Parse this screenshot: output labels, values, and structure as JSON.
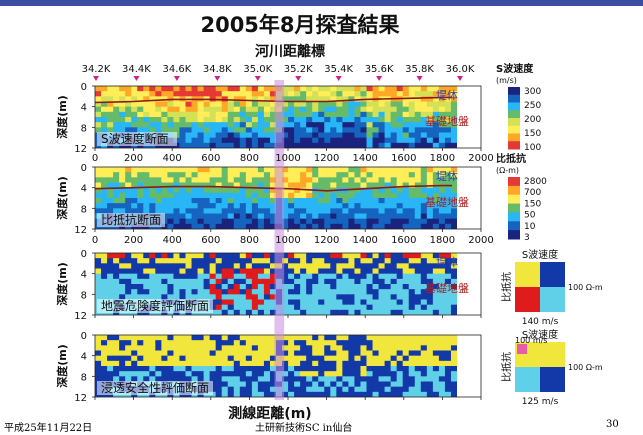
{
  "slide": {
    "title": "2005年8月探査結果",
    "top_axis_label": "河川距離標",
    "bottom_axis_label": "測線距離(m)",
    "footer_left": "平成25年11月22日",
    "footer_center": "土研新技術SC in仙台",
    "page_number": "30"
  },
  "chart_data": {
    "type": "heatmap",
    "title": "2005年8月探査結果",
    "top_axis": {
      "label": "河川距離標",
      "ticks": [
        "34.2K",
        "34.4K",
        "34.6K",
        "34.8K",
        "35.0K",
        "35.2K",
        "35.4K",
        "35.6K",
        "35.8K",
        "36.0K"
      ]
    },
    "x_axis": {
      "label": "測線距離(m)",
      "ticks": [
        "0",
        "200",
        "400",
        "600",
        "800",
        "1000",
        "1200",
        "1400",
        "1600",
        "1800",
        "2000"
      ],
      "range": [
        0,
        2000
      ]
    },
    "highlight_x_range": [
      930,
      980
    ],
    "panels": [
      {
        "name": "S波速度断面",
        "ylabel": "深度(m)",
        "y_ticks": [
          "0",
          "4",
          "8",
          "12"
        ],
        "y_range": [
          0,
          12
        ],
        "labels": [
          "堤体",
          "基礎地盤"
        ],
        "colorbar": {
          "title": "S波速度",
          "unit": "(m/s)",
          "ticks": [
            "300",
            "250",
            "200",
            "150",
            "100"
          ],
          "colors": [
            "#1a237e",
            "#1565c0",
            "#29b6f6",
            "#66bb6a",
            "#d4e157",
            "#ffee58",
            "#ffa726",
            "#e53935"
          ]
        },
        "boundary_depth": [
          [
            0,
            3.2
          ],
          [
            200,
            3.0
          ],
          [
            400,
            2.6
          ],
          [
            600,
            2.6
          ],
          [
            800,
            2.8
          ],
          [
            1000,
            3.0
          ],
          [
            1200,
            3.0
          ],
          [
            1400,
            2.6
          ],
          [
            1600,
            2.4
          ],
          [
            1800,
            2.2
          ],
          [
            1850,
            2.2
          ]
        ]
      },
      {
        "name": "比抵抗断面",
        "ylabel": "深度(m)",
        "y_ticks": [
          "0",
          "4",
          "8",
          "12"
        ],
        "y_range": [
          0,
          12
        ],
        "labels": [
          "堤体",
          "基礎地盤"
        ],
        "colorbar": {
          "title": "比抵抗",
          "unit": "(Ω-m)",
          "ticks": [
            "2800",
            "700",
            "150",
            "50",
            "10",
            "3"
          ],
          "colors": [
            "#e53935",
            "#ffa726",
            "#ffee58",
            "#66bb6a",
            "#29b6f6",
            "#1565c0",
            "#1a237e"
          ]
        },
        "boundary_depth": [
          [
            0,
            4.2
          ],
          [
            200,
            4.0
          ],
          [
            400,
            3.8
          ],
          [
            600,
            3.8
          ],
          [
            800,
            4.0
          ],
          [
            1000,
            4.2
          ],
          [
            1200,
            4.6
          ],
          [
            1400,
            4.2
          ],
          [
            1600,
            3.8
          ],
          [
            1800,
            3.6
          ],
          [
            1850,
            3.6
          ]
        ]
      },
      {
        "name": "地震危険度評価断面",
        "ylabel": "深度(m)",
        "y_ticks": [
          "0",
          "4",
          "8",
          "12"
        ],
        "y_range": [
          0,
          12
        ],
        "labels": [
          "堤体",
          "基礎地盤"
        ],
        "legend": {
          "x_title": "S波速度",
          "y_title": "比抵抗",
          "x_value": "140 m/s",
          "y_value": "100 Ω-m",
          "quadrants": [
            "#f0e63c",
            "#1338a8",
            "#e01b1b",
            "#5fd0e8"
          ]
        }
      },
      {
        "name": "浸透安全性評価断面",
        "ylabel": "深度(m)",
        "y_ticks": [
          "0",
          "4",
          "8",
          "12"
        ],
        "y_range": [
          0,
          12
        ],
        "legend": {
          "x_title": "S波速度",
          "y_title": "比抵抗",
          "x_value": "125 m/s",
          "y_value": "100 Ω-m",
          "corner_value": "100 m/s",
          "quadrants": [
            "#f0e63c",
            "#f0e63c",
            "#5fd0e8",
            "#1338a8"
          ]
        }
      }
    ]
  }
}
